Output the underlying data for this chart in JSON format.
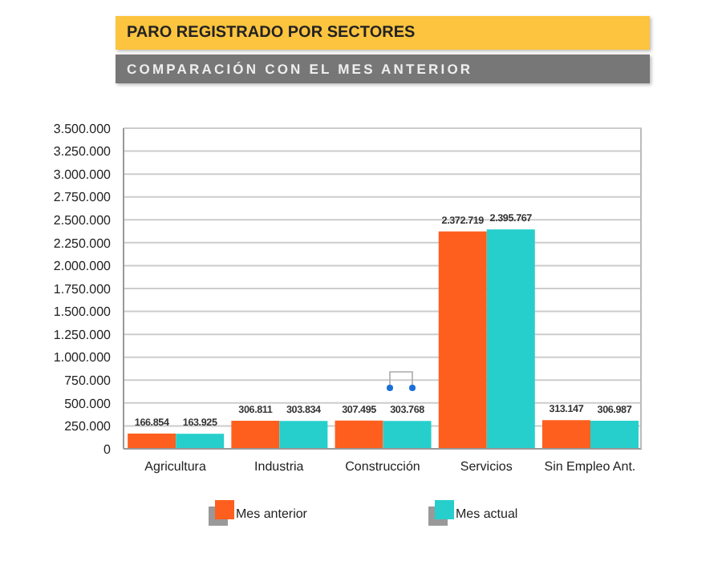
{
  "chart_data": {
    "type": "bar",
    "title": "PARO REGISTRADO POR SECTORES",
    "subtitle": "COMPARACIÓN CON EL MES ANTERIOR",
    "categories": [
      "Agricultura",
      "Industria",
      "Construcción",
      "Servicios",
      "Sin Empleo Ant."
    ],
    "series": [
      {
        "name": "Mes anterior",
        "color": "#fe5f1f",
        "values": [
          166854,
          306811,
          307495,
          2372719,
          313147
        ],
        "value_labels": [
          "166.854",
          "306.811",
          "307.495",
          "2.372.719",
          "313.147"
        ]
      },
      {
        "name": "Mes actual",
        "color": "#26cfcb",
        "values": [
          163925,
          303834,
          303768,
          2395767,
          306987
        ],
        "value_labels": [
          "163.925",
          "303.834",
          "303.768",
          "2.395.767",
          "306.987"
        ]
      }
    ],
    "ylim": [
      0,
      3500000
    ],
    "yticks": [
      0,
      {
        "value": 250000,
        "label": "250.000"
      },
      {
        "value": 500000,
        "label": "500.000"
      },
      {
        "value": 750000,
        "label": "750.000"
      },
      {
        "value": 1000000,
        "label": "1.000.000"
      },
      {
        "value": 1250000,
        "label": "1.250.000"
      },
      {
        "value": 1500000,
        "label": "1.500.000"
      },
      {
        "value": 1750000,
        "label": "1.750.000"
      },
      {
        "value": 2000000,
        "label": "2.000.000"
      },
      {
        "value": 2250000,
        "label": "2.250.000"
      },
      {
        "value": 2500000,
        "label": "2.500.000"
      },
      {
        "value": 2750000,
        "label": "2.750.000"
      },
      {
        "value": 3000000,
        "label": "3.000.000"
      },
      {
        "value": 3250000,
        "label": "3.250.000"
      },
      {
        "value": 3500000,
        "label": "3.500.000"
      }
    ],
    "grid": "y",
    "legend": "bottom"
  }
}
